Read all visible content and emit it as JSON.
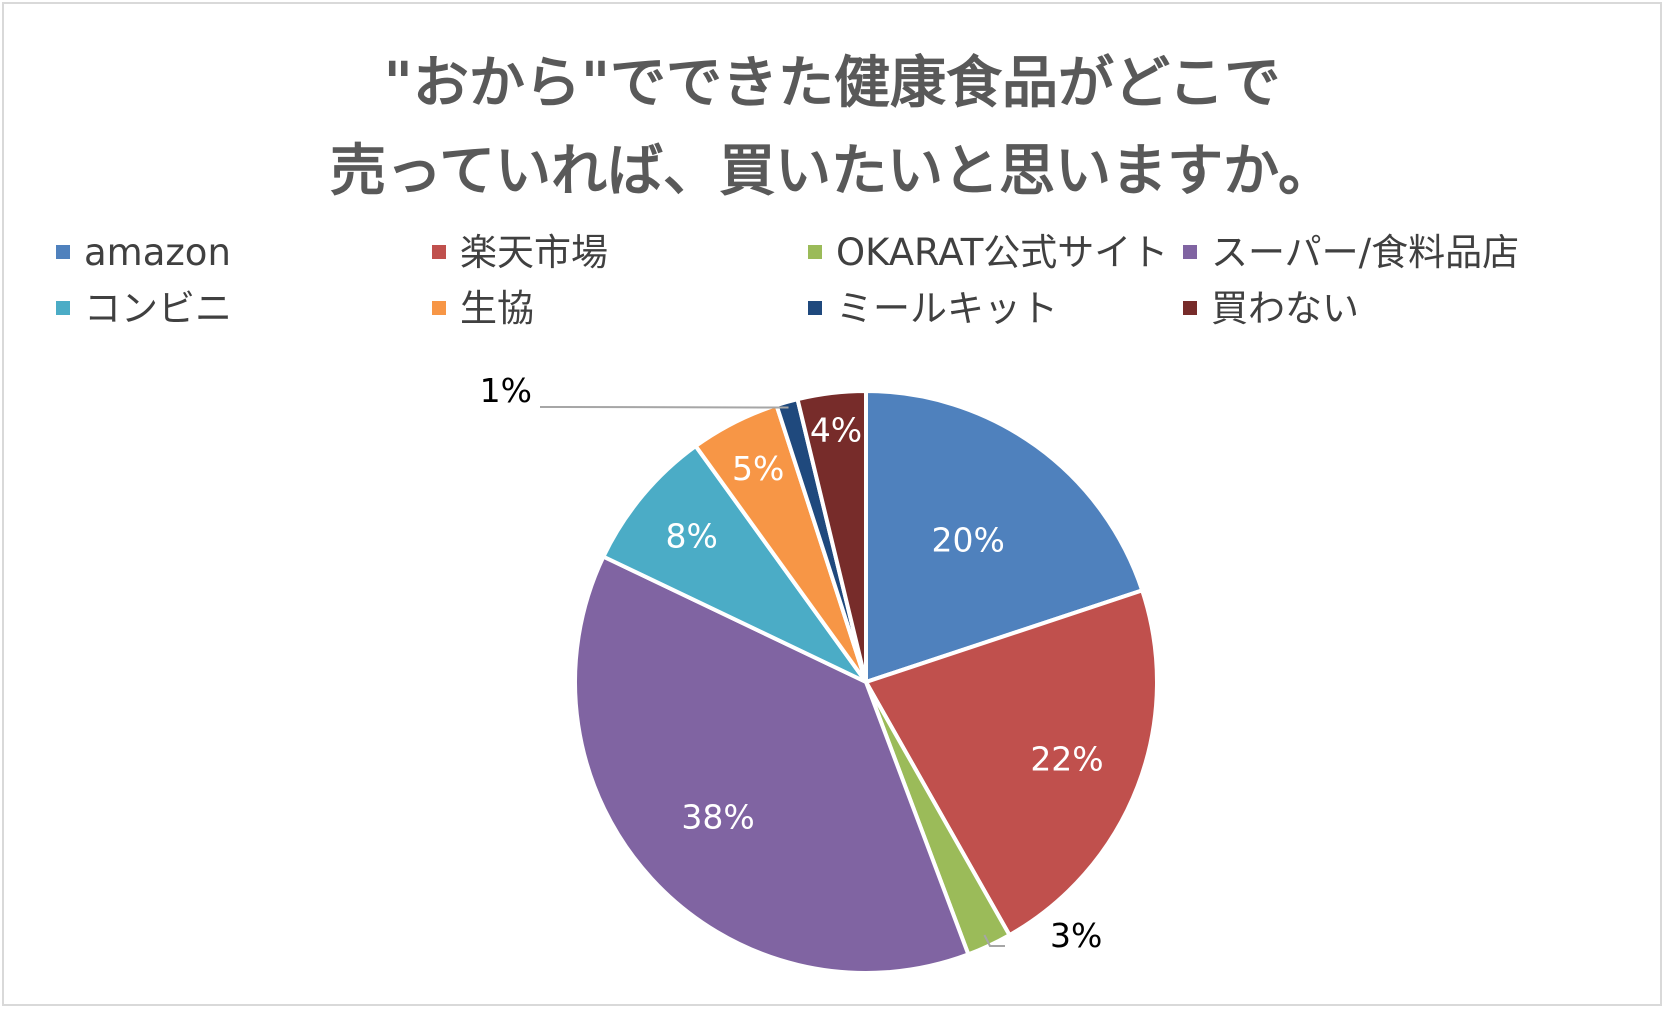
{
  "chart_data": {
    "type": "pie",
    "title": [
      "\"おから\"でできた健康食品がどこで",
      "売っていれば、買いたいと思いますか。"
    ],
    "legend_position": "top",
    "slices": [
      {
        "name": "amazon",
        "value": 20,
        "label": "20%",
        "color": "#4f81bd"
      },
      {
        "name": "楽天市場",
        "value": 22,
        "label": "22%",
        "color": "#c0504d"
      },
      {
        "name": "OKARAT公式サイト",
        "value": 2.5,
        "label": "3%",
        "color": "#9bbb59"
      },
      {
        "name": "スーパー/食料品店",
        "value": 38,
        "label": "38%",
        "color": "#8064a2"
      },
      {
        "name": "コンビニ",
        "value": 8,
        "label": "8%",
        "color": "#4bacc6"
      },
      {
        "name": "生協",
        "value": 5,
        "label": "5%",
        "color": "#f79646"
      },
      {
        "name": "ミールキット",
        "value": 1.2,
        "label": "1%",
        "color": "#1f497d"
      },
      {
        "name": "買わない",
        "value": 3.8,
        "label": "4%",
        "color": "#772c2a"
      }
    ]
  }
}
